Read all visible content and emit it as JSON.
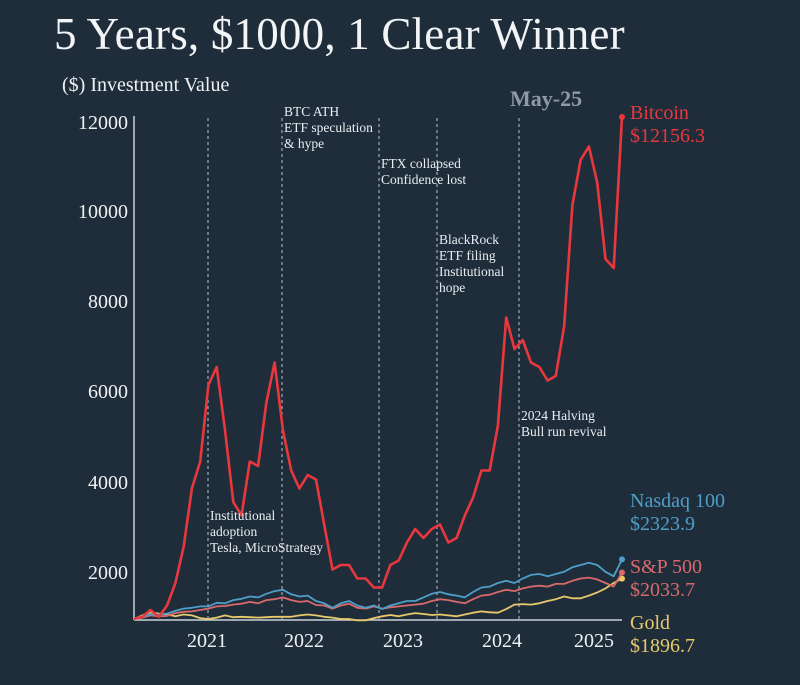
{
  "title": "5 Years, $1000, 1 Clear Winner",
  "y_axis_label": "($) Investment Value",
  "current_month_label": "May-25",
  "colors": {
    "background": "#1f2d3b",
    "bitcoin": "#e8383d",
    "nasdaq": "#4e9fc8",
    "sp500": "#d9696a",
    "gold": "#e8c96a",
    "axis": "#c9d1d8",
    "month_label": "#8e9aa6"
  },
  "y_ticks": [
    "12000",
    "10000",
    "8000",
    "6000",
    "4000",
    "2000"
  ],
  "x_ticks": [
    "2021",
    "2022",
    "2023",
    "2024",
    "2025"
  ],
  "annotations": [
    {
      "text": "Institutional\nadoption\nTesla, MicroStrategy"
    },
    {
      "text": "BTC ATH\nETF speculation\n& hype"
    },
    {
      "text": "FTX collapsed\nConfidence lost"
    },
    {
      "text": "BlackRock\nETF filing\nInstitutional\nhope"
    },
    {
      "text": "2024 Halving\nBull run revival"
    }
  ],
  "legend": [
    {
      "name": "Bitcoin",
      "value": "$12156.3"
    },
    {
      "name": "Nasdaq 100",
      "value": "$2323.9"
    },
    {
      "name": "S&P 500",
      "value": "$2033.7"
    },
    {
      "name": "Gold",
      "value": "$1896.7"
    }
  ],
  "chart_data": {
    "type": "line",
    "title": "5 Years, $1000, 1 Clear Winner",
    "xlabel": "",
    "ylabel": "($) Investment Value",
    "ylim": [
      1000,
      12000
    ],
    "x_range": [
      "Jun 2020",
      "May 2025"
    ],
    "x_tick_labels": [
      "2021",
      "2022",
      "2023",
      "2024",
      "2025"
    ],
    "y_tick_labels": [
      2000,
      4000,
      6000,
      8000,
      10000,
      12000
    ],
    "grid": false,
    "legend_position": "right (end-of-line labels)",
    "x_months": [
      "2020-06",
      "2020-07",
      "2020-08",
      "2020-09",
      "2020-10",
      "2020-11",
      "2020-12",
      "2021-01",
      "2021-02",
      "2021-03",
      "2021-04",
      "2021-05",
      "2021-06",
      "2021-07",
      "2021-08",
      "2021-09",
      "2021-10",
      "2021-11",
      "2021-12",
      "2022-01",
      "2022-02",
      "2022-03",
      "2022-04",
      "2022-05",
      "2022-06",
      "2022-07",
      "2022-08",
      "2022-09",
      "2022-10",
      "2022-11",
      "2022-12",
      "2023-01",
      "2023-02",
      "2023-03",
      "2023-04",
      "2023-05",
      "2023-06",
      "2023-07",
      "2023-08",
      "2023-09",
      "2023-10",
      "2023-11",
      "2023-12",
      "2024-01",
      "2024-02",
      "2024-03",
      "2024-04",
      "2024-05",
      "2024-06",
      "2024-07",
      "2024-08",
      "2024-09",
      "2024-10",
      "2024-11",
      "2024-12",
      "2025-01",
      "2025-02",
      "2025-03",
      "2025-04",
      "2025-05"
    ],
    "series": [
      {
        "name": "Bitcoin",
        "color": "#e8383d",
        "final_value": 12156.3,
        "values": [
          1000,
          1050,
          1200,
          1050,
          1300,
          1800,
          2600,
          3900,
          4500,
          6200,
          6600,
          5200,
          3600,
          3300,
          4500,
          4400,
          5800,
          6700,
          5200,
          4300,
          3900,
          4200,
          4100,
          3100,
          2100,
          2200,
          2200,
          1900,
          1900,
          1700,
          1700,
          2200,
          2300,
          2700,
          3000,
          2800,
          3000,
          3100,
          2700,
          2800,
          3300,
          3700,
          4300,
          4300,
          5300,
          7700,
          7000,
          7200,
          6700,
          6600,
          6300,
          6400,
          7500,
          10200,
          11200,
          11500,
          10700,
          9000,
          8800,
          12156
        ]
      },
      {
        "name": "Nasdaq 100",
        "color": "#4e9fc8",
        "final_value": 2323.9,
        "values": [
          1000,
          1050,
          1100,
          1100,
          1120,
          1180,
          1230,
          1250,
          1280,
          1280,
          1360,
          1350,
          1420,
          1450,
          1500,
          1480,
          1560,
          1620,
          1650,
          1550,
          1500,
          1520,
          1400,
          1350,
          1250,
          1350,
          1400,
          1300,
          1250,
          1300,
          1220,
          1300,
          1350,
          1400,
          1400,
          1480,
          1560,
          1600,
          1550,
          1520,
          1480,
          1600,
          1700,
          1720,
          1800,
          1850,
          1800,
          1900,
          1980,
          2000,
          1950,
          2000,
          2050,
          2150,
          2200,
          2250,
          2200,
          2050,
          1950,
          2324
        ]
      },
      {
        "name": "S&P 500",
        "color": "#d9696a",
        "final_value": 2033.7,
        "values": [
          1000,
          1030,
          1080,
          1060,
          1070,
          1130,
          1160,
          1170,
          1200,
          1230,
          1280,
          1290,
          1320,
          1340,
          1380,
          1350,
          1420,
          1440,
          1480,
          1420,
          1380,
          1400,
          1310,
          1300,
          1230,
          1300,
          1340,
          1250,
          1230,
          1280,
          1230,
          1260,
          1280,
          1300,
          1320,
          1340,
          1400,
          1440,
          1420,
          1380,
          1350,
          1440,
          1520,
          1540,
          1600,
          1650,
          1620,
          1680,
          1720,
          1740,
          1720,
          1780,
          1780,
          1850,
          1900,
          1920,
          1880,
          1800,
          1720,
          2034
        ]
      },
      {
        "name": "Gold",
        "color": "#e8c96a",
        "final_value": 1896.7,
        "values": [
          1000,
          1080,
          1150,
          1120,
          1100,
          1060,
          1100,
          1080,
          1020,
          1000,
          1030,
          1080,
          1040,
          1050,
          1040,
          1030,
          1040,
          1050,
          1050,
          1050,
          1080,
          1100,
          1080,
          1050,
          1030,
          1000,
          1000,
          970,
          970,
          1020,
          1060,
          1090,
          1060,
          1100,
          1130,
          1110,
          1090,
          1100,
          1080,
          1060,
          1100,
          1140,
          1170,
          1150,
          1140,
          1220,
          1320,
          1330,
          1320,
          1350,
          1400,
          1440,
          1500,
          1460,
          1460,
          1520,
          1590,
          1680,
          1800,
          1897
        ]
      }
    ],
    "annotations": [
      {
        "at": "2021-02",
        "text": "Institutional adoption Tesla, MicroStrategy"
      },
      {
        "at": "2021-11",
        "text": "BTC ATH ETF speculation & hype"
      },
      {
        "at": "2022-11",
        "text": "FTX collapsed Confidence lost"
      },
      {
        "at": "2023-06",
        "text": "BlackRock ETF filing Institutional hope"
      },
      {
        "at": "2024-04",
        "text": "2024 Halving Bull run revival"
      }
    ]
  }
}
